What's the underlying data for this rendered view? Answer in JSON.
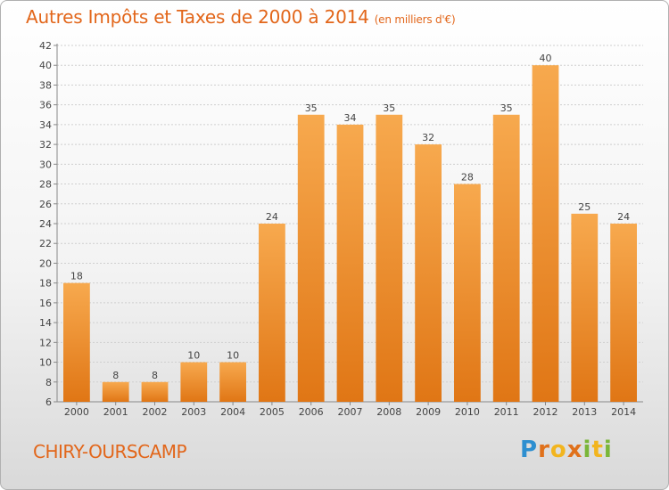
{
  "header": {
    "title": "Autres Impôts et Taxes de 2000 à 2014",
    "unit": "(en milliers d'€)"
  },
  "footer": {
    "commune": "CHIRY-OURSCAMP",
    "logo": [
      "P",
      "r",
      "o",
      "x",
      "i",
      "t",
      "i"
    ]
  },
  "colors": {
    "accent": "#e2661a",
    "bar_top": "#f7a94e",
    "bar_bottom": "#e07615"
  },
  "chart_data": {
    "type": "bar",
    "title": "Autres Impôts et Taxes de 2000 à 2014",
    "subtitle": "(en milliers d'€)",
    "xlabel": "",
    "ylabel": "",
    "categories": [
      "2000",
      "2001",
      "2002",
      "2003",
      "2004",
      "2005",
      "2006",
      "2007",
      "2008",
      "2009",
      "2010",
      "2011",
      "2012",
      "2013",
      "2014"
    ],
    "values": [
      18,
      8,
      8,
      10,
      10,
      24,
      35,
      34,
      35,
      32,
      28,
      35,
      40,
      25,
      24
    ],
    "ylim": [
      6,
      42
    ],
    "yticks": [
      "6",
      "8",
      "10",
      "12",
      "14",
      "16",
      "18",
      "20",
      "22",
      "24",
      "26",
      "28",
      "30",
      "32",
      "34",
      "36",
      "38",
      "40",
      "42"
    ],
    "grid": true,
    "legend": "none"
  }
}
